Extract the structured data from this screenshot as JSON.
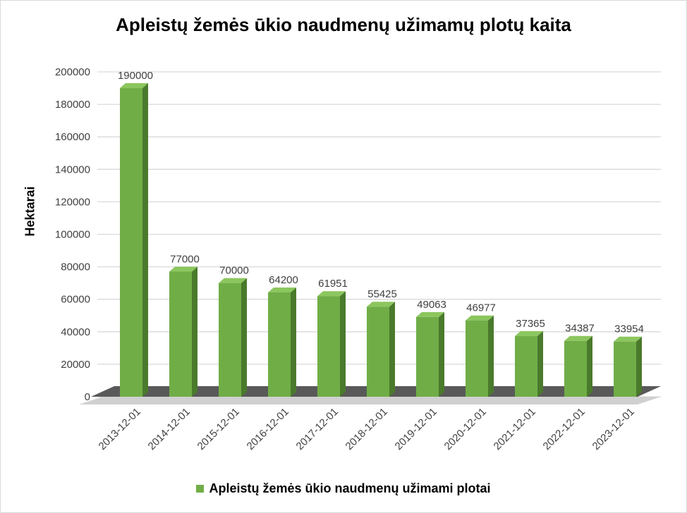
{
  "chart_data": {
    "type": "bar",
    "title": "Apleistų žemės ūkio naudmenų užimamų plotų kaita",
    "xlabel": "",
    "ylabel": "Hektarai",
    "categories": [
      "2013-12-01",
      "2014-12-01",
      "2015-12-01",
      "2016-12-01",
      "2017-12-01",
      "2018-12-01",
      "2019-12-01",
      "2020-12-01",
      "2021-12-01",
      "2022-12-01",
      "2023-12-01"
    ],
    "series": [
      {
        "name": "Apleistų žemės ūkio naudmenų užimami plotai",
        "values": [
          190000,
          77000,
          70000,
          64200,
          61951,
          55425,
          49063,
          46977,
          37365,
          34387,
          33954
        ]
      }
    ],
    "ylim": [
      0,
      200000
    ],
    "yticks": [
      0,
      20000,
      40000,
      60000,
      80000,
      100000,
      120000,
      140000,
      160000,
      180000,
      200000
    ],
    "grid": true,
    "legend_position": "bottom",
    "bar_style": "3d",
    "colors": {
      "bar_front": "#70ad47",
      "bar_top": "#8cc65e",
      "bar_side": "#4a7a2c",
      "floor": "#595959",
      "grid": "#d9d9d9"
    }
  }
}
